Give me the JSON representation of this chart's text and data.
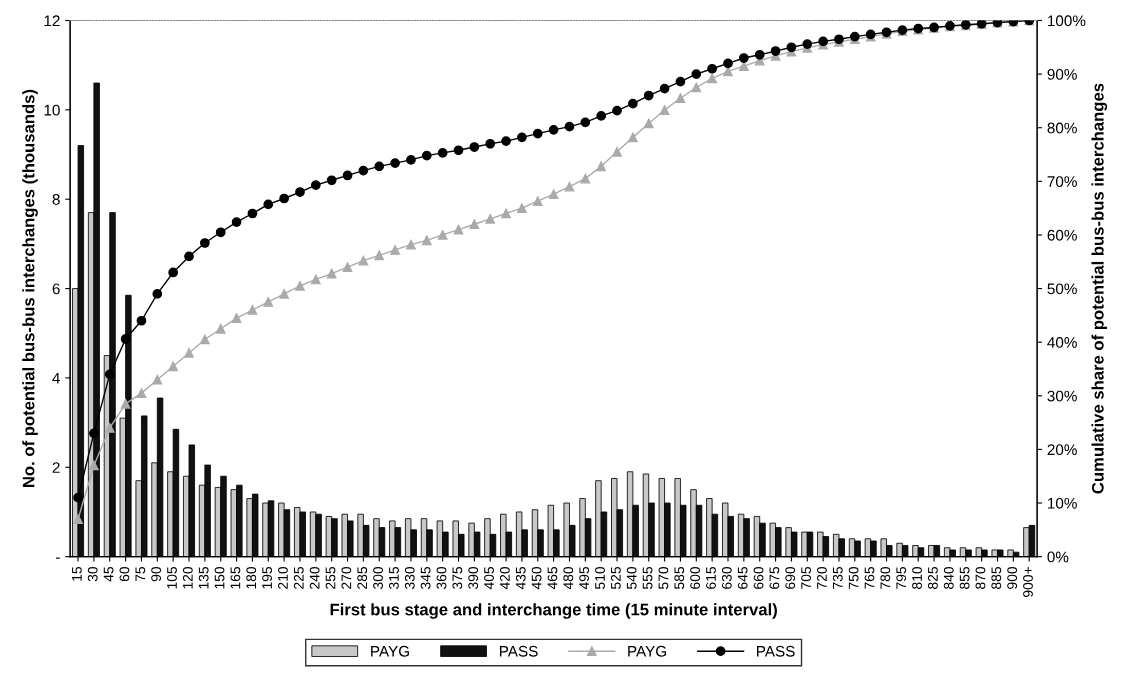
{
  "chart_data": {
    "type": "bar",
    "xlabel": "First bus stage and interchange time (15 minute interval)",
    "ylabel": "No. of potential bus-bus interchanges (thousands)",
    "y2label": "Cumulative share of potential bus-bus interchanges",
    "categories": [
      "15",
      "30",
      "45",
      "60",
      "75",
      "90",
      "105",
      "120",
      "135",
      "150",
      "165",
      "180",
      "195",
      "210",
      "225",
      "240",
      "255",
      "270",
      "285",
      "300",
      "315",
      "330",
      "345",
      "360",
      "375",
      "390",
      "405",
      "420",
      "435",
      "450",
      "465",
      "480",
      "495",
      "510",
      "525",
      "540",
      "555",
      "570",
      "585",
      "600",
      "615",
      "630",
      "645",
      "660",
      "675",
      "690",
      "705",
      "720",
      "735",
      "750",
      "765",
      "780",
      "795",
      "810",
      "825",
      "840",
      "855",
      "870",
      "885",
      "900",
      "900+"
    ],
    "ylim": [
      0,
      12
    ],
    "yticks": [
      {
        "value": 0,
        "label": "-"
      },
      2,
      4,
      6,
      8,
      10,
      12
    ],
    "y2lim": [
      0,
      100
    ],
    "y2ticks": [
      {
        "value": 0,
        "label": "0%"
      },
      {
        "value": 10,
        "label": "10%"
      },
      {
        "value": 20,
        "label": "20%"
      },
      {
        "value": 30,
        "label": "30%"
      },
      {
        "value": 40,
        "label": "40%"
      },
      {
        "value": 50,
        "label": "50%"
      },
      {
        "value": 60,
        "label": "60%"
      },
      {
        "value": 70,
        "label": "70%"
      },
      {
        "value": 80,
        "label": "80%"
      },
      {
        "value": 90,
        "label": "90%"
      },
      {
        "value": 100,
        "label": "100%"
      }
    ],
    "legend": "bottom",
    "series": [
      {
        "name": "PAYG",
        "color": "#c8c8c8",
        "values": [
          6.0,
          7.7,
          4.5,
          3.1,
          1.7,
          2.1,
          1.9,
          1.8,
          1.6,
          1.55,
          1.5,
          1.3,
          1.2,
          1.2,
          1.1,
          1.0,
          0.9,
          0.95,
          0.95,
          0.85,
          0.8,
          0.85,
          0.85,
          0.8,
          0.8,
          0.75,
          0.85,
          0.95,
          1.0,
          1.05,
          1.15,
          1.2,
          1.3,
          1.7,
          1.75,
          1.9,
          1.85,
          1.75,
          1.75,
          1.5,
          1.3,
          1.2,
          0.95,
          0.9,
          0.75,
          0.65,
          0.55,
          0.55,
          0.5,
          0.4,
          0.4,
          0.4,
          0.3,
          0.25,
          0.25,
          0.2,
          0.2,
          0.2,
          0.15,
          0.15,
          0.65
        ]
      },
      {
        "name": "PASS",
        "color": "#111111",
        "values": [
          9.2,
          10.6,
          7.7,
          5.85,
          3.15,
          3.55,
          2.85,
          2.5,
          2.05,
          1.8,
          1.6,
          1.4,
          1.25,
          1.05,
          1.0,
          0.95,
          0.85,
          0.8,
          0.7,
          0.65,
          0.65,
          0.6,
          0.6,
          0.55,
          0.5,
          0.55,
          0.5,
          0.55,
          0.6,
          0.6,
          0.6,
          0.7,
          0.85,
          1.0,
          1.05,
          1.15,
          1.2,
          1.2,
          1.15,
          1.15,
          0.95,
          0.9,
          0.85,
          0.75,
          0.65,
          0.55,
          0.55,
          0.45,
          0.4,
          0.35,
          0.35,
          0.25,
          0.25,
          0.2,
          0.25,
          0.15,
          0.15,
          0.15,
          0.15,
          0.1,
          0.7
        ]
      },
      {
        "name": "PAYG",
        "type": "line",
        "axis": "y2",
        "color": "#aaaaaa",
        "marker": "triangle",
        "values": [
          7,
          17,
          24,
          28.5,
          30.5,
          33,
          35.5,
          38,
          40.5,
          42.5,
          44.5,
          46,
          47.5,
          49,
          50.5,
          51.7,
          52.8,
          54,
          55.2,
          56.2,
          57.2,
          58.2,
          59,
          60,
          61,
          62,
          63,
          64,
          65,
          66.3,
          67.6,
          69,
          70.5,
          72.8,
          75.5,
          78.2,
          80.8,
          83.3,
          85.5,
          87.5,
          89.2,
          90.5,
          91.5,
          92.5,
          93.4,
          94.2,
          94.9,
          95.5,
          96,
          96.5,
          97,
          97.5,
          98,
          98.3,
          98.6,
          98.9,
          99.1,
          99.3,
          99.6,
          99.8,
          100
        ]
      },
      {
        "name": "PASS",
        "type": "line",
        "axis": "y2",
        "color": "#000000",
        "marker": "circle",
        "values": [
          11,
          23,
          34,
          40.6,
          44,
          49,
          53,
          56,
          58.5,
          60.5,
          62.4,
          64,
          65.7,
          66.8,
          68,
          69.3,
          70.2,
          71.1,
          72,
          72.8,
          73.4,
          74,
          74.8,
          75.3,
          75.8,
          76.4,
          77,
          77.5,
          78.2,
          78.9,
          79.6,
          80.2,
          81,
          82.2,
          83.2,
          84.5,
          86,
          87.3,
          88.6,
          90,
          91,
          92,
          93,
          93.6,
          94.3,
          95,
          95.6,
          96.1,
          96.5,
          97,
          97.4,
          97.8,
          98.2,
          98.5,
          98.7,
          99,
          99.2,
          99.4,
          99.6,
          99.8,
          100
        ]
      }
    ]
  }
}
